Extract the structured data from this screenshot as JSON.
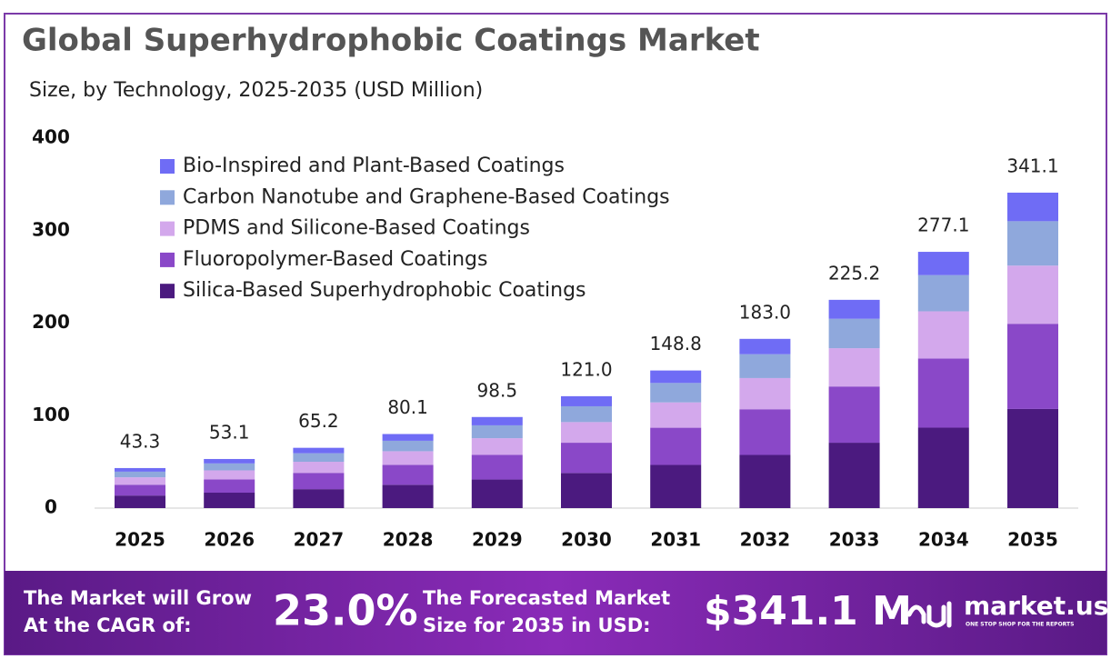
{
  "chart_data": {
    "type": "stacked_bar",
    "title": "Global Superhydrophobic Coatings Market",
    "subtitle": "Size, by Technology, 2025-2035 (USD Million)",
    "categories": [
      "2025",
      "2026",
      "2027",
      "2028",
      "2029",
      "2030",
      "2031",
      "2032",
      "2033",
      "2034",
      "2035"
    ],
    "series": [
      {
        "name": "Silica-Based Superhydrophobic Coatings",
        "color": "#4b1a7f",
        "values": [
          13.6,
          16.7,
          20.5,
          25.2,
          30.9,
          38.0,
          46.7,
          57.5,
          70.7,
          87.0,
          107.2
        ]
      },
      {
        "name": "Fluoropolymer-Based Coatings",
        "color": "#8a48c8",
        "values": [
          11.7,
          14.3,
          17.6,
          21.6,
          26.6,
          32.7,
          40.2,
          49.4,
          60.8,
          74.8,
          92.1
        ]
      },
      {
        "name": "PDMS and Silicone-Based Coatings",
        "color": "#d3a8ec",
        "values": [
          8.0,
          9.8,
          12.0,
          14.7,
          18.1,
          22.3,
          27.4,
          33.7,
          41.4,
          51.0,
          62.9
        ]
      },
      {
        "name": "Carbon Nanotube and Graphene-Based Coatings",
        "color": "#8fa8dc",
        "values": [
          6.1,
          7.5,
          9.2,
          11.3,
          13.9,
          17.1,
          21.0,
          25.8,
          31.8,
          39.1,
          48.0
        ]
      },
      {
        "name": "Bio-Inspired and Plant-Based Coatings",
        "color": "#6f6cf5",
        "values": [
          3.9,
          4.8,
          5.9,
          7.3,
          9.0,
          10.9,
          13.5,
          16.6,
          20.5,
          25.2,
          30.9
        ]
      }
    ],
    "total_labels": [
      "43.3",
      "53.1",
      "65.2",
      "80.1",
      "98.5",
      "121.0",
      "148.8",
      "183.0",
      "225.2",
      "277.1",
      "341.1"
    ],
    "ylim": [
      0,
      400
    ],
    "yticks": [
      0,
      100,
      200,
      300,
      400
    ]
  },
  "footer": {
    "cagr_text_1": "The Market will Grow",
    "cagr_text_2": "At the CAGR of:",
    "cagr": "23.0%",
    "forecast_text_1": "The Forecasted Market",
    "forecast_text_2": "Size for 2035 in USD:",
    "forecast": "$341.1 M",
    "brand": "market.us",
    "tagline": "ONE STOP SHOP FOR THE REPORTS"
  }
}
